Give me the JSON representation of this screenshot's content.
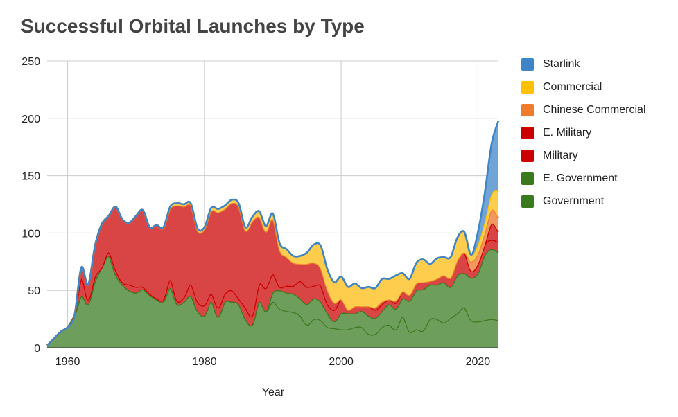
{
  "chart_data": {
    "type": "area",
    "stacked": true,
    "title": "Successful Orbital Launches by Type",
    "xlabel": "Year",
    "ylabel": "",
    "xlim": [
      1957,
      2023
    ],
    "ylim": [
      0,
      250
    ],
    "x_ticks": [
      1960,
      1980,
      2000,
      2020
    ],
    "y_ticks": [
      0,
      50,
      100,
      150,
      200,
      250
    ],
    "grid": true,
    "legend_position": "right",
    "x": [
      1957,
      1958,
      1959,
      1960,
      1961,
      1962,
      1963,
      1964,
      1965,
      1966,
      1967,
      1968,
      1969,
      1970,
      1971,
      1972,
      1973,
      1974,
      1975,
      1976,
      1977,
      1978,
      1979,
      1980,
      1981,
      1982,
      1983,
      1984,
      1985,
      1986,
      1987,
      1988,
      1989,
      1990,
      1991,
      1992,
      1993,
      1994,
      1995,
      1996,
      1997,
      1998,
      1999,
      2000,
      2001,
      2002,
      2003,
      2004,
      2005,
      2006,
      2007,
      2008,
      2009,
      2010,
      2011,
      2012,
      2013,
      2014,
      2015,
      2016,
      2017,
      2018,
      2019,
      2020,
      2021,
      2022,
      2023
    ],
    "series": [
      {
        "name": "Government",
        "color": "#3a7a1f",
        "fill": "#6e9e5c",
        "values": [
          2,
          8,
          14,
          18,
          28,
          45,
          38,
          58,
          70,
          80,
          64,
          55,
          50,
          48,
          51,
          46,
          42,
          40,
          52,
          38,
          40,
          45,
          32,
          28,
          40,
          27,
          40,
          40,
          38,
          25,
          20,
          40,
          32,
          40,
          34,
          32,
          31,
          28,
          20,
          25,
          24,
          18,
          17,
          16,
          16,
          18,
          18,
          12,
          12,
          18,
          20,
          16,
          27,
          14,
          16,
          15,
          25,
          25,
          22,
          26,
          30,
          35,
          24,
          23,
          24,
          25,
          24
        ]
      },
      {
        "name": "E. Government",
        "color": "#3a7a1f",
        "fill": "#6e9e5c",
        "values": [
          0,
          0,
          0,
          0,
          0,
          0,
          0,
          0,
          0,
          0,
          0,
          0,
          0,
          0,
          0,
          0,
          0,
          0,
          0,
          0,
          0,
          0,
          0,
          0,
          0,
          0,
          0,
          0,
          0,
          0,
          0,
          0,
          0,
          8,
          16,
          16,
          16,
          15,
          18,
          18,
          16,
          12,
          6,
          14,
          14,
          12,
          14,
          16,
          14,
          14,
          18,
          18,
          16,
          27,
          34,
          36,
          30,
          30,
          35,
          27,
          33,
          30,
          37,
          42,
          57,
          61,
          59
        ]
      },
      {
        "name": "Military",
        "color": "#cc0000",
        "fill": "#d94545",
        "values": [
          0,
          0,
          0,
          0,
          0,
          15,
          4,
          4,
          0,
          3,
          4,
          2,
          5,
          5,
          2,
          1,
          1,
          2,
          7,
          3,
          4,
          10,
          8,
          9,
          7,
          8,
          7,
          10,
          5,
          10,
          8,
          15,
          20,
          16,
          3,
          6,
          7,
          15,
          15,
          11,
          14,
          8,
          10,
          12,
          3,
          6,
          4,
          8,
          7,
          6,
          4,
          5,
          6,
          5,
          6,
          6,
          3,
          5,
          6,
          8,
          13,
          18,
          6,
          8,
          9,
          8,
          9
        ]
      },
      {
        "name": "E. Military",
        "color": "#cc0000",
        "fill": "#d94545",
        "values": [
          0,
          0,
          0,
          0,
          0,
          10,
          13,
          27,
          38,
          32,
          55,
          55,
          54,
          62,
          67,
          58,
          64,
          62,
          62,
          83,
          79,
          69,
          62,
          66,
          72,
          83,
          74,
          76,
          80,
          67,
          82,
          59,
          49,
          48,
          32,
          25,
          20,
          15,
          20,
          20,
          15,
          12,
          6,
          0,
          0,
          0,
          0,
          0,
          2,
          2,
          0,
          2,
          0,
          0,
          0,
          0,
          0,
          0,
          0,
          0,
          0,
          0,
          0,
          0,
          0,
          14,
          9
        ]
      },
      {
        "name": "Chinese Commercial",
        "color": "#ef7c2d",
        "fill": "#f09a62",
        "values": [
          0,
          0,
          0,
          0,
          0,
          0,
          0,
          0,
          0,
          0,
          0,
          0,
          0,
          0,
          0,
          0,
          0,
          0,
          0,
          0,
          0,
          0,
          0,
          0,
          0,
          0,
          0,
          0,
          0,
          0,
          0,
          0,
          0,
          0,
          0,
          0,
          0,
          0,
          0,
          0,
          0,
          0,
          0,
          0,
          0,
          0,
          0,
          0,
          0,
          0,
          0,
          0,
          0,
          0,
          0,
          0,
          0,
          0,
          0,
          0,
          0,
          0,
          8,
          9,
          10,
          12,
          12
        ]
      },
      {
        "name": "Commercial",
        "color": "#ffc000",
        "fill": "#ffcd4d",
        "values": [
          0,
          0,
          0,
          0,
          0,
          0,
          0,
          0,
          0,
          0,
          0,
          0,
          0,
          0,
          0,
          0,
          0,
          1,
          2,
          2,
          2,
          2,
          2,
          2,
          3,
          3,
          3,
          3,
          3,
          3,
          4,
          5,
          5,
          5,
          6,
          7,
          6,
          7,
          10,
          16,
          20,
          18,
          18,
          20,
          20,
          20,
          16,
          17,
          17,
          20,
          18,
          22,
          16,
          14,
          18,
          20,
          15,
          18,
          16,
          18,
          20,
          18,
          6,
          8,
          10,
          14,
          24
        ]
      },
      {
        "name": "Starlink",
        "color": "#3d85c6",
        "fill": "#70a3d6",
        "values": [
          0,
          0,
          0,
          0,
          0,
          0,
          0,
          0,
          0,
          0,
          0,
          0,
          0,
          0,
          0,
          0,
          0,
          0,
          0,
          0,
          0,
          0,
          0,
          0,
          0,
          0,
          0,
          0,
          0,
          0,
          0,
          0,
          0,
          0,
          0,
          0,
          0,
          0,
          0,
          0,
          0,
          0,
          0,
          0,
          0,
          0,
          0,
          0,
          0,
          0,
          0,
          0,
          0,
          0,
          0,
          0,
          0,
          0,
          0,
          0,
          0,
          0,
          0,
          11,
          25,
          44,
          61
        ]
      }
    ]
  }
}
